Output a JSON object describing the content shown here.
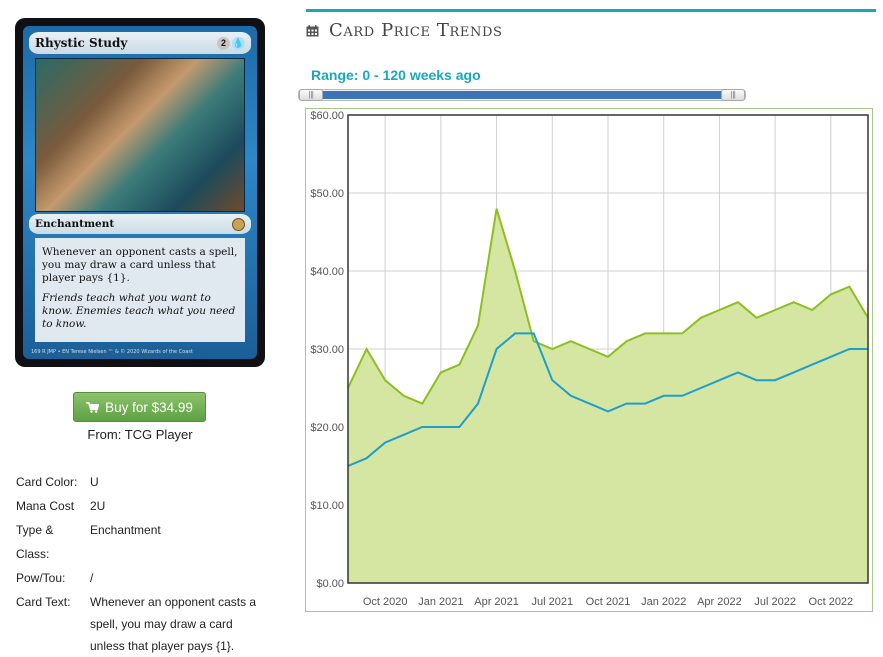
{
  "card": {
    "name": "Rhystic Study",
    "mana_symbols": [
      "2",
      "U"
    ],
    "type_line": "Enchantment",
    "rules_text": "Whenever an opponent casts a spell, you may draw a card unless that player pays {1}.",
    "flavor_text": "Friends teach what you want to know. Enemies teach what you need to know.",
    "footer": "169  R  JMP • EN  Terese Nielsen   ™ & © 2020 Wizards of the Coast"
  },
  "buy": {
    "label": "Buy for $34.99",
    "source": "From: TCG Player"
  },
  "details": [
    {
      "label": "Card Color:",
      "value": "U"
    },
    {
      "label": "Mana Cost",
      "value": "2U"
    },
    {
      "label": "Type & Class:",
      "value": "Enchantment"
    },
    {
      "label": "Pow/Tou:",
      "value": "/"
    },
    {
      "label": "Card Text:",
      "value": "Whenever an opponent casts a spell, you may draw a card unless that player pays {1}."
    }
  ],
  "section": {
    "title": "Card Price Trends",
    "icon": "calendar-icon"
  },
  "range": {
    "label": "Range: 0 - 120 weeks ago"
  },
  "colors": {
    "accent": "#17a9b9",
    "green_line": "#8cbf1f",
    "green_fill": "#d5e6a3",
    "blue_line": "#1f9ec9",
    "button": "#6aab4d"
  },
  "chart_data": {
    "type": "line",
    "title": "",
    "xlabel": "",
    "ylabel": "",
    "ylim": [
      0,
      60
    ],
    "yticks": [
      "$0.00",
      "$10.00",
      "$20.00",
      "$30.00",
      "$40.00",
      "$50.00",
      "$60.00"
    ],
    "xticks": [
      "Oct 2020",
      "Jan 2021",
      "Apr 2021",
      "Jul 2021",
      "Oct 2021",
      "Jan 2022",
      "Apr 2022",
      "Jul 2022",
      "Oct 2022"
    ],
    "x_dates": [
      "2020-08",
      "2020-09",
      "2020-10",
      "2020-11",
      "2020-12",
      "2021-01",
      "2021-02",
      "2021-03",
      "2021-04",
      "2021-05",
      "2021-06",
      "2021-07",
      "2021-08",
      "2021-09",
      "2021-10",
      "2021-11",
      "2021-12",
      "2022-01",
      "2022-02",
      "2022-03",
      "2022-04",
      "2022-05",
      "2022-06",
      "2022-07",
      "2022-08",
      "2022-09",
      "2022-10",
      "2022-11",
      "2022-12"
    ],
    "series": [
      {
        "values": [
          25,
          30,
          26,
          24,
          23,
          27,
          28,
          33,
          48,
          40,
          31,
          30,
          31,
          30,
          29,
          31,
          32,
          32,
          32,
          34,
          35,
          36,
          34,
          35,
          36,
          35,
          37,
          38,
          34
        ]
      },
      {
        "values": [
          15,
          16,
          18,
          19,
          20,
          20,
          20,
          23,
          30,
          32,
          32,
          26,
          24,
          23,
          22,
          23,
          23,
          24,
          24,
          25,
          26,
          27,
          26,
          26,
          27,
          28,
          29,
          30,
          30
        ]
      }
    ]
  }
}
